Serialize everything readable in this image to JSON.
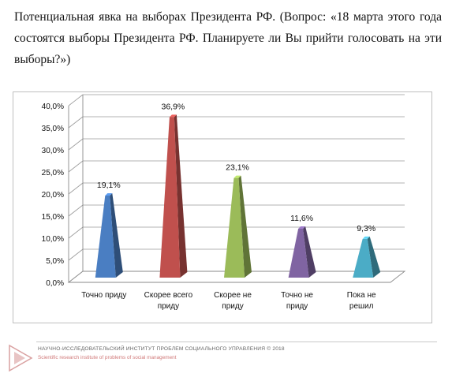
{
  "title": "Потенциальная явка на выборах Президента РФ. (Вопрос: «18 марта этого года состоятся выборы Президента РФ. Планируете ли Вы прийти голосовать на эти выборы?»)",
  "chart_data": {
    "type": "bar",
    "style": "3d-pyramid",
    "categories": [
      [
        "Точно приду"
      ],
      [
        "Скорее всего",
        "приду"
      ],
      [
        "Скорее не",
        "приду"
      ],
      [
        "Точно не",
        "приду"
      ],
      [
        "Пока не",
        "решил"
      ]
    ],
    "values": [
      19.1,
      36.9,
      23.1,
      11.6,
      9.3
    ],
    "value_labels": [
      "19,1%",
      "36,9%",
      "23,1%",
      "11,6%",
      "9,3%"
    ],
    "colors": [
      "#4a7ec2",
      "#c0504d",
      "#9bbb59",
      "#8064a2",
      "#4bacc6"
    ],
    "yticks": [
      "0,0%",
      "5,0%",
      "10,0%",
      "15,0%",
      "20,0%",
      "25,0%",
      "30,0%",
      "35,0%",
      "40,0%"
    ],
    "ylim": [
      0,
      40
    ],
    "grid": true,
    "legend": "none"
  },
  "footer": {
    "org": "НАУЧНО-ИССЛЕДОВАТЕЛЬСКИЙ ИНСТИТУТ ПРОБЛЕМ СОЦИАЛЬНОГО УПРАВЛЕНИЯ © 2018",
    "org_en": "Scientific research institute of problems of social management"
  }
}
